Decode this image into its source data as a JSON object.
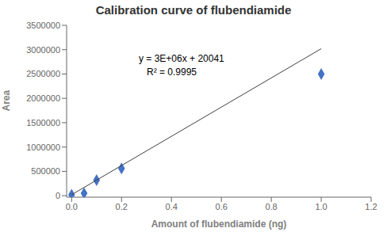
{
  "chart_data": {
    "type": "scatter",
    "title": "Calibration curve of flubendiamide",
    "xlabel": "Amount of flubendiamide (ng)",
    "ylabel": "Area",
    "series": [
      {
        "type": "scatter",
        "color": "#4472C4",
        "marker": "diamond",
        "x": [
          0.0,
          0.05,
          0.1,
          0.2,
          1.0
        ],
        "values": [
          20041,
          50000,
          320000,
          560000,
          2500000
        ]
      },
      {
        "type": "line",
        "color": "#404040",
        "x": [
          0,
          1.0
        ],
        "values": [
          20041,
          3020041
        ]
      }
    ],
    "annotations": [
      "y = 3E+06x + 20041",
      "R² = 0.9995"
    ],
    "xlim": [
      -0.02,
      1.2
    ],
    "ylim": [
      -30000,
      3500000
    ],
    "xticks": [
      {
        "value": 0,
        "label": "0.0"
      },
      0.2,
      0.4,
      0.6,
      0.8,
      {
        "value": 1.0,
        "label": "1.0"
      },
      1.2
    ],
    "yticks": [
      0,
      500000,
      1000000,
      1500000,
      2000000,
      2500000,
      3000000,
      3500000
    ],
    "grid": false
  }
}
